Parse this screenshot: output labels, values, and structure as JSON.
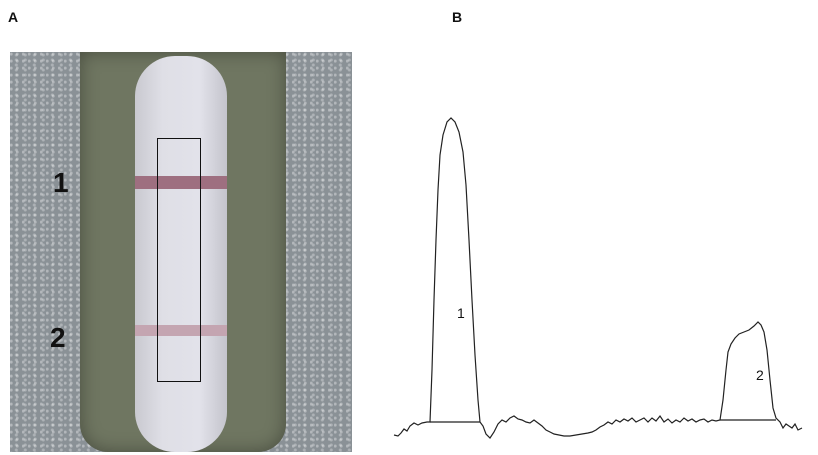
{
  "panel_a": {
    "label": "A",
    "strip_labels": [
      "1",
      "2"
    ]
  },
  "panel_b": {
    "label": "B",
    "peak_labels": [
      "1",
      "2"
    ]
  },
  "chart_data": {
    "type": "line",
    "title": "",
    "xlabel": "",
    "ylabel": "",
    "series": [
      {
        "values": [
          [
            0,
            5
          ],
          [
            4,
            4
          ],
          [
            7,
            7
          ],
          [
            10,
            11
          ],
          [
            13,
            9
          ],
          [
            16,
            14
          ],
          [
            20,
            17
          ],
          [
            24,
            15
          ],
          [
            28,
            17
          ],
          [
            33,
            18
          ],
          [
            36,
            18
          ],
          [
            38,
            70
          ],
          [
            40,
            140
          ],
          [
            42,
            200
          ],
          [
            44,
            250
          ],
          [
            46,
            285
          ],
          [
            49,
            305
          ],
          [
            53,
            318
          ],
          [
            57,
            322
          ],
          [
            61,
            318
          ],
          [
            65,
            308
          ],
          [
            69,
            288
          ],
          [
            72,
            255
          ],
          [
            75,
            200
          ],
          [
            78,
            140
          ],
          [
            81,
            85
          ],
          [
            84,
            40
          ],
          [
            86,
            18
          ],
          [
            89,
            14
          ],
          [
            92,
            6
          ],
          [
            96,
            2
          ],
          [
            100,
            8
          ],
          [
            104,
            16
          ],
          [
            108,
            20
          ],
          [
            112,
            18
          ],
          [
            116,
            22
          ],
          [
            120,
            24
          ],
          [
            124,
            21
          ],
          [
            128,
            20
          ],
          [
            132,
            18
          ],
          [
            136,
            17
          ],
          [
            140,
            20
          ],
          [
            144,
            17
          ],
          [
            148,
            14
          ],
          [
            152,
            10
          ],
          [
            156,
            8
          ],
          [
            160,
            6
          ],
          [
            165,
            5
          ],
          [
            170,
            4
          ],
          [
            176,
            4
          ],
          [
            182,
            5
          ],
          [
            188,
            6
          ],
          [
            194,
            7
          ],
          [
            198,
            8
          ],
          [
            202,
            10
          ],
          [
            206,
            13
          ],
          [
            210,
            15
          ],
          [
            214,
            18
          ],
          [
            218,
            16
          ],
          [
            222,
            20
          ],
          [
            226,
            18
          ],
          [
            230,
            21
          ],
          [
            234,
            19
          ],
          [
            238,
            22
          ],
          [
            242,
            18
          ],
          [
            246,
            20
          ],
          [
            250,
            22
          ],
          [
            254,
            18
          ],
          [
            258,
            22
          ],
          [
            262,
            19
          ],
          [
            266,
            24
          ],
          [
            270,
            18
          ],
          [
            274,
            21
          ],
          [
            278,
            17
          ],
          [
            282,
            20
          ],
          [
            286,
            18
          ],
          [
            290,
            22
          ],
          [
            294,
            19
          ],
          [
            298,
            21
          ],
          [
            302,
            18
          ],
          [
            306,
            20
          ],
          [
            310,
            21
          ],
          [
            314,
            18
          ],
          [
            318,
            20
          ],
          [
            322,
            19
          ],
          [
            326,
            20
          ],
          [
            329,
            40
          ],
          [
            332,
            70
          ],
          [
            334,
            88
          ],
          [
            337,
            96
          ],
          [
            341,
            102
          ],
          [
            345,
            106
          ],
          [
            350,
            108
          ],
          [
            355,
            110
          ],
          [
            360,
            114
          ],
          [
            364,
            118
          ],
          [
            367,
            115
          ],
          [
            370,
            108
          ],
          [
            373,
            90
          ],
          [
            376,
            60
          ],
          [
            379,
            32
          ],
          [
            382,
            22
          ],
          [
            386,
            18
          ],
          [
            389,
            12
          ],
          [
            392,
            16
          ],
          [
            395,
            14
          ],
          [
            398,
            12
          ],
          [
            401,
            16
          ],
          [
            404,
            10
          ],
          [
            408,
            12
          ]
        ]
      }
    ],
    "baselines": [
      {
        "x_start": 36,
        "x_end": 86,
        "y": 18
      },
      {
        "x_start": 326,
        "x_end": 382,
        "y": 20
      }
    ],
    "peaks": [
      {
        "label": "1",
        "x": 57,
        "y": 322
      },
      {
        "label": "2",
        "x": 360,
        "y": 114
      }
    ],
    "xlim": [
      0,
      408
    ],
    "ylim": [
      0,
      340
    ]
  }
}
